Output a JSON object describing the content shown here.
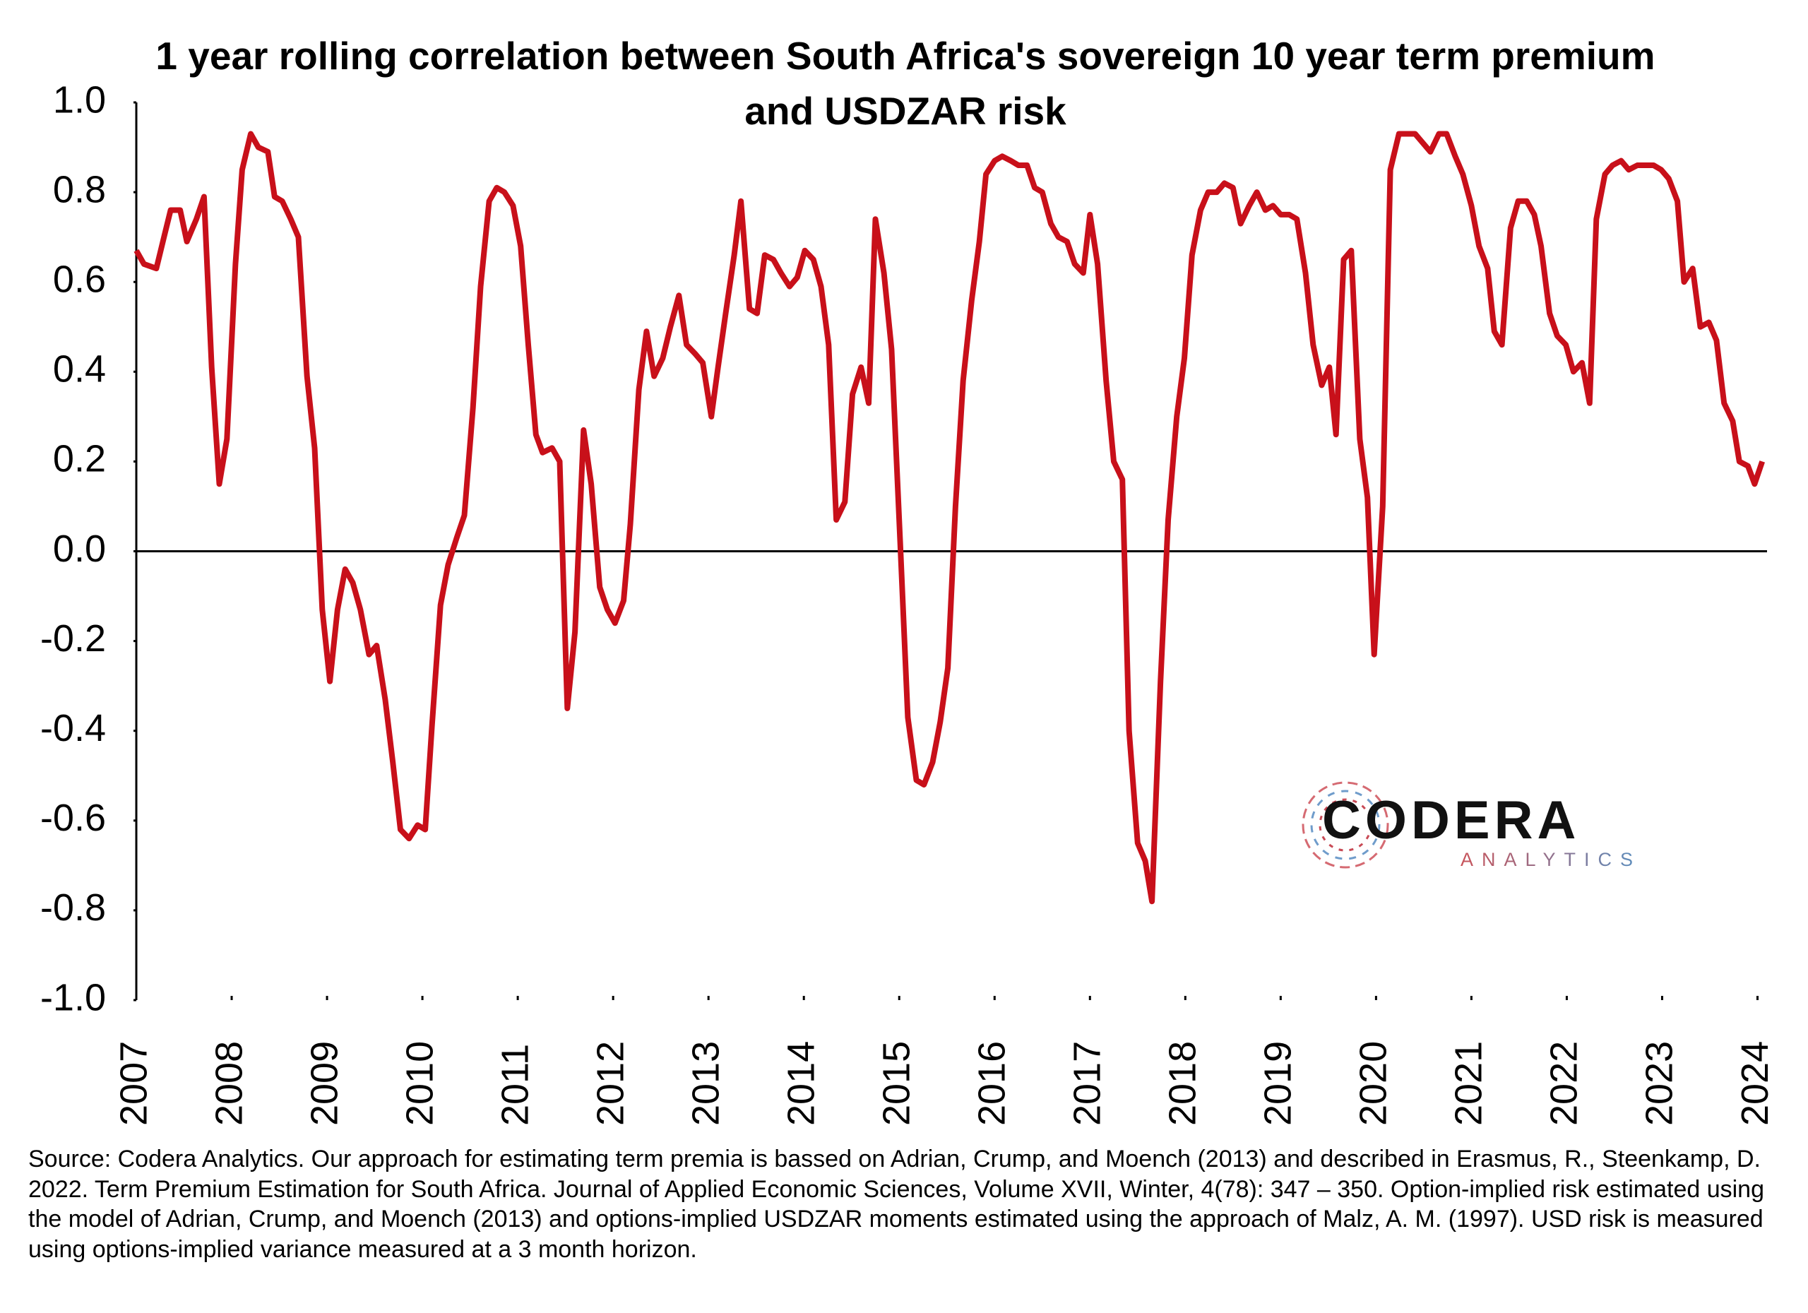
{
  "chart_data": {
    "type": "line",
    "title": "1 year rolling correlation between South Africa's sovereign 10 year term premium and USDZAR risk",
    "source": "Source: Codera Analytics. Our approach for estimating term premia is bassed on Adrian, Crump, and Moench (2013) and described in Erasmus, R., Steenkamp, D. 2022. Term Premium Estimation for South Africa. Journal of Applied Economic Sciences, Volume XVII, Winter, 4(78): 347 – 350. Option-implied risk estimated using the model of Adrian, Crump, and Moench (2013) and options-implied USDZAR moments estimated using the approach of Malz, A. M. (1997). USD risk is measured using options-implied variance measured at a 3 month horizon.",
    "logo": {
      "name": "CODERA",
      "tagline": "ANALYTICS"
    },
    "color": "#c8101a",
    "xlim": [
      2007,
      2024.1
    ],
    "xticks": [
      2007,
      2008,
      2009,
      2010,
      2011,
      2012,
      2013,
      2014,
      2015,
      2016,
      2017,
      2018,
      2019,
      2020,
      2021,
      2022,
      2023,
      2024
    ],
    "ylim": [
      -1,
      1
    ],
    "yticks": [
      {
        "value": 1,
        "label": "1.0"
      },
      0.8,
      0.6,
      0.4,
      0.2,
      {
        "value": 0,
        "label": "0.0"
      },
      -0.2,
      -0.4,
      -0.6,
      -0.8,
      {
        "value": -1,
        "label": "-1.0"
      }
    ],
    "grid": false,
    "x": [
      2007.0,
      2007.08,
      2007.21,
      2007.29,
      2007.36,
      2007.46,
      2007.53,
      2007.63,
      2007.71,
      2007.79,
      2007.87,
      2007.95,
      2008.04,
      2008.11,
      2008.2,
      2008.28,
      2008.38,
      2008.45,
      2008.53,
      2008.62,
      2008.7,
      2008.79,
      2008.87,
      2008.95,
      2009.03,
      2009.11,
      2009.19,
      2009.27,
      2009.35,
      2009.44,
      2009.52,
      2009.61,
      2009.69,
      2009.77,
      2009.86,
      2009.95,
      2010.03,
      2010.1,
      2010.19,
      2010.27,
      2010.36,
      2010.44,
      2010.53,
      2010.61,
      2010.7,
      2010.78,
      2010.86,
      2010.95,
      2011.03,
      2011.11,
      2011.19,
      2011.26,
      2011.36,
      2011.44,
      2011.52,
      2011.6,
      2011.69,
      2011.77,
      2011.86,
      2011.94,
      2012.02,
      2012.11,
      2012.18,
      2012.27,
      2012.35,
      2012.43,
      2012.52,
      2012.6,
      2012.69,
      2012.77,
      2012.86,
      2012.94,
      2013.03,
      2013.1,
      2013.18,
      2013.27,
      2013.34,
      2013.43,
      2013.51,
      2013.59,
      2013.68,
      2013.76,
      2013.85,
      2013.93,
      2014.01,
      2014.1,
      2014.18,
      2014.26,
      2014.34,
      2014.43,
      2014.51,
      2014.6,
      2014.68,
      2014.75,
      2014.84,
      2014.92,
      2015.01,
      2015.09,
      2015.18,
      2015.26,
      2015.35,
      2015.43,
      2015.51,
      2015.59,
      2015.67,
      2015.76,
      2015.84,
      2015.91,
      2016.0,
      2016.08,
      2016.17,
      2016.25,
      2016.34,
      2016.42,
      2016.5,
      2016.59,
      2016.67,
      2016.76,
      2016.84,
      2016.93,
      2017.0,
      2017.08,
      2017.17,
      2017.25,
      2017.34,
      2017.41,
      2017.5,
      2017.58,
      2017.65,
      2017.74,
      2017.82,
      2017.91,
      2017.99,
      2018.07,
      2018.16,
      2018.24,
      2018.33,
      2018.41,
      2018.5,
      2018.58,
      2018.67,
      2018.75,
      2018.84,
      2018.92,
      2019.0,
      2019.09,
      2019.17,
      2019.26,
      2019.34,
      2019.43,
      2019.51,
      2019.58,
      2019.66,
      2019.74,
      2019.83,
      2019.91,
      2019.98,
      2020.07,
      2020.15,
      2020.24,
      2020.32,
      2020.41,
      2020.49,
      2020.57,
      2020.66,
      2020.74,
      2020.83,
      2020.91,
      2021.0,
      2021.08,
      2021.17,
      2021.24,
      2021.32,
      2021.41,
      2021.49,
      2021.58,
      2021.66,
      2021.73,
      2021.82,
      2021.9,
      2021.99,
      2022.07,
      2022.16,
      2022.24,
      2022.31,
      2022.4,
      2022.48,
      2022.57,
      2022.65,
      2022.74,
      2022.82,
      2022.91,
      2022.99,
      2023.07,
      2023.16,
      2023.23,
      2023.32,
      2023.4,
      2023.49,
      2023.57,
      2023.65,
      2023.74,
      2023.81,
      2023.9,
      2023.97,
      2024.05
    ],
    "values": [
      0.67,
      0.64,
      0.63,
      0.7,
      0.76,
      0.76,
      0.69,
      0.74,
      0.79,
      0.41,
      0.15,
      0.25,
      0.64,
      0.85,
      0.93,
      0.9,
      0.89,
      0.79,
      0.78,
      0.74,
      0.7,
      0.39,
      0.23,
      -0.13,
      -0.29,
      -0.13,
      -0.04,
      -0.07,
      -0.13,
      -0.23,
      -0.21,
      -0.33,
      -0.47,
      -0.62,
      -0.64,
      -0.61,
      -0.62,
      -0.39,
      -0.12,
      -0.03,
      0.03,
      0.08,
      0.32,
      0.59,
      0.78,
      0.81,
      0.8,
      0.77,
      0.68,
      0.46,
      0.26,
      0.22,
      0.23,
      0.2,
      -0.35,
      -0.18,
      0.27,
      0.15,
      -0.08,
      -0.13,
      -0.16,
      -0.11,
      0.06,
      0.36,
      0.49,
      0.39,
      0.43,
      0.5,
      0.57,
      0.46,
      0.44,
      0.42,
      0.3,
      0.41,
      0.53,
      0.66,
      0.78,
      0.54,
      0.53,
      0.66,
      0.65,
      0.62,
      0.59,
      0.61,
      0.67,
      0.65,
      0.59,
      0.46,
      0.07,
      0.11,
      0.35,
      0.41,
      0.33,
      0.74,
      0.62,
      0.45,
      0.02,
      -0.37,
      -0.51,
      -0.52,
      -0.47,
      -0.38,
      -0.26,
      0.1,
      0.38,
      0.56,
      0.69,
      0.84,
      0.87,
      0.88,
      0.87,
      0.86,
      0.86,
      0.81,
      0.8,
      0.73,
      0.7,
      0.69,
      0.64,
      0.62,
      0.75,
      0.64,
      0.38,
      0.2,
      0.16,
      -0.4,
      -0.65,
      -0.69,
      -0.78,
      -0.29,
      0.07,
      0.3,
      0.43,
      0.66,
      0.76,
      0.8,
      0.8,
      0.82,
      0.81,
      0.73,
      0.77,
      0.8,
      0.76,
      0.77,
      0.75,
      0.75,
      0.74,
      0.62,
      0.46,
      0.37,
      0.41,
      0.26,
      0.65,
      0.67,
      0.25,
      0.12,
      -0.23,
      0.1,
      0.85,
      0.93,
      0.93,
      0.93,
      0.91,
      0.89,
      0.93,
      0.93,
      0.88,
      0.84,
      0.77,
      0.68,
      0.63,
      0.49,
      0.46,
      0.72,
      0.78,
      0.78,
      0.75,
      0.68,
      0.53,
      0.48,
      0.46,
      0.4,
      0.42,
      0.33,
      0.74,
      0.84,
      0.86,
      0.87,
      0.85,
      0.86,
      0.86,
      0.86,
      0.85,
      0.83,
      0.78,
      0.6,
      0.63,
      0.5,
      0.51,
      0.47,
      0.33,
      0.29,
      0.2,
      0.19,
      0.15,
      0.2
    ]
  }
}
